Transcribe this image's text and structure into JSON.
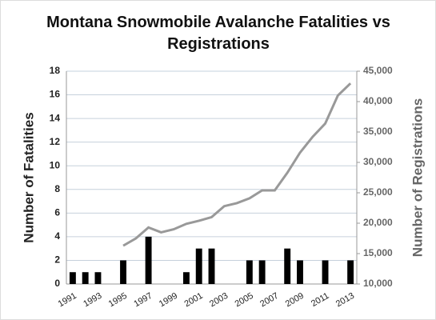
{
  "chart_data": {
    "type": "bar_line",
    "title": "Montana Snowmobile Avalanche Fatalities vs Registrations",
    "ylabel": "Number of Fatalities",
    "y2label": "Number of Registrations",
    "categories": [
      "1991",
      null,
      "1993",
      null,
      "1995",
      null,
      "1997",
      null,
      "1999",
      null,
      "2001",
      null,
      "2003",
      null,
      "2005",
      null,
      "2007",
      null,
      "2009",
      null,
      "2011",
      null,
      "2013"
    ],
    "series": [
      {
        "name": "Fatalities",
        "type": "bar",
        "color": "#000000",
        "axis": "y",
        "values": [
          1,
          1,
          1,
          0,
          2,
          0,
          4,
          0,
          0,
          1,
          3,
          3,
          0,
          0,
          2,
          2,
          0,
          3,
          2,
          0,
          2,
          0,
          2
        ]
      },
      {
        "name": "Registrations",
        "type": "line",
        "color": "#999999",
        "axis": "y2",
        "values": [
          null,
          null,
          null,
          null,
          16300,
          17500,
          19300,
          18500,
          19000,
          19900,
          20400,
          21000,
          22800,
          23300,
          24100,
          25400,
          25400,
          28300,
          31600,
          34200,
          36400,
          41000,
          43000
        ]
      }
    ],
    "ylim": [
      0,
      18
    ],
    "yticks": [
      0,
      2,
      4,
      6,
      8,
      10,
      12,
      14,
      16,
      18
    ],
    "y2lim": [
      10000,
      45000
    ],
    "y2ticks": [
      {
        "value": 10000,
        "label": "10,000"
      },
      {
        "value": 15000,
        "label": "15,000"
      },
      {
        "value": 20000,
        "label": "20,000"
      },
      {
        "value": 25000,
        "label": "25,000"
      },
      {
        "value": 30000,
        "label": "30,000"
      },
      {
        "value": 35000,
        "label": "35,000"
      },
      {
        "value": 40000,
        "label": "40,000"
      },
      {
        "value": 45000,
        "label": "45,000"
      }
    ],
    "grid": true
  }
}
